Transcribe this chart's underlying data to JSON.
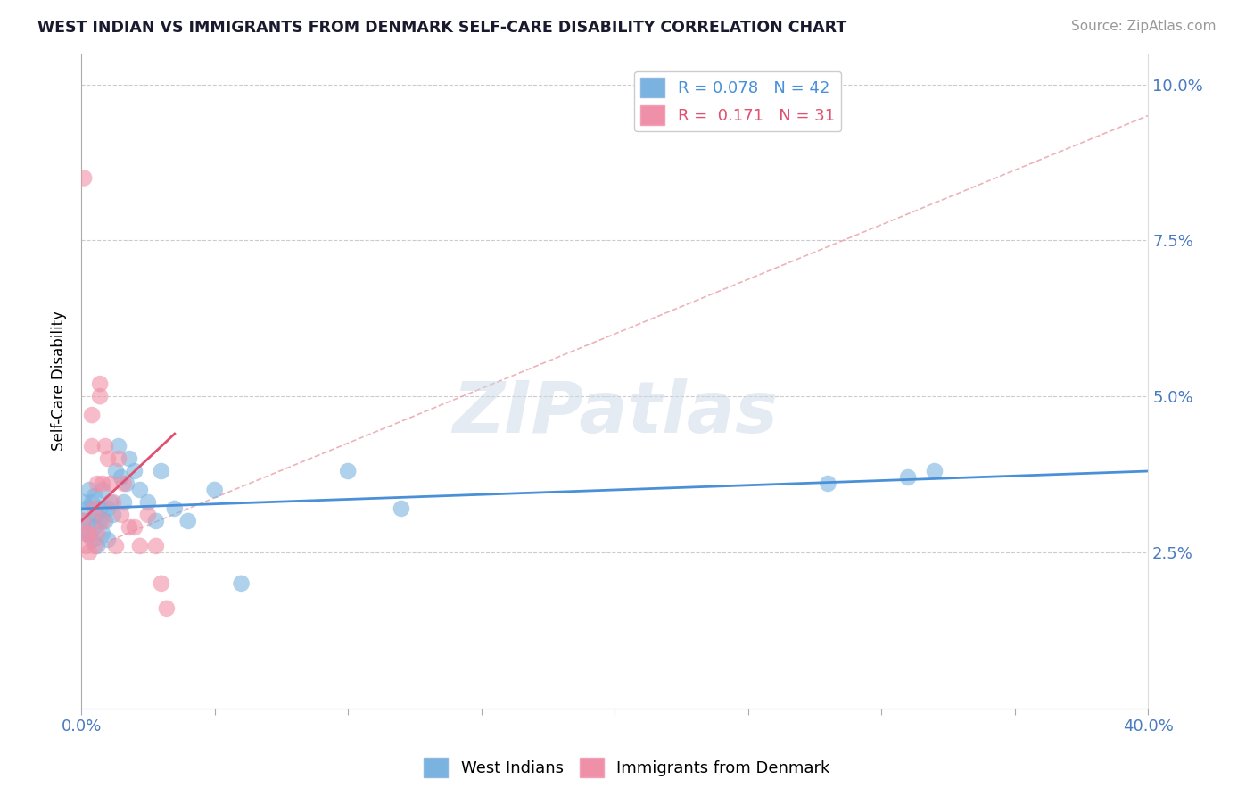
{
  "title": "WEST INDIAN VS IMMIGRANTS FROM DENMARK SELF-CARE DISABILITY CORRELATION CHART",
  "source": "Source: ZipAtlas.com",
  "xmin": 0.0,
  "xmax": 0.4,
  "ymin": 0.0,
  "ymax": 0.105,
  "ylabel": "Self-Care Disability",
  "ytick_vals": [
    0.025,
    0.05,
    0.075,
    0.1
  ],
  "ytick_labels": [
    "2.5%",
    "5.0%",
    "7.5%",
    "10.0%"
  ],
  "west_indians_x": [
    0.001,
    0.001,
    0.002,
    0.002,
    0.003,
    0.003,
    0.003,
    0.004,
    0.004,
    0.005,
    0.005,
    0.006,
    0.006,
    0.007,
    0.007,
    0.008,
    0.008,
    0.009,
    0.01,
    0.01,
    0.011,
    0.012,
    0.013,
    0.014,
    0.015,
    0.016,
    0.017,
    0.018,
    0.02,
    0.022,
    0.025,
    0.028,
    0.03,
    0.035,
    0.04,
    0.05,
    0.06,
    0.1,
    0.12,
    0.28,
    0.31,
    0.32
  ],
  "west_indians_y": [
    0.033,
    0.03,
    0.032,
    0.028,
    0.035,
    0.03,
    0.028,
    0.033,
    0.027,
    0.034,
    0.029,
    0.031,
    0.026,
    0.03,
    0.032,
    0.028,
    0.035,
    0.03,
    0.032,
    0.027,
    0.033,
    0.031,
    0.038,
    0.042,
    0.037,
    0.033,
    0.036,
    0.04,
    0.038,
    0.035,
    0.033,
    0.03,
    0.038,
    0.032,
    0.03,
    0.035,
    0.02,
    0.038,
    0.032,
    0.036,
    0.037,
    0.038
  ],
  "denmark_x": [
    0.001,
    0.001,
    0.002,
    0.002,
    0.003,
    0.003,
    0.004,
    0.004,
    0.005,
    0.005,
    0.006,
    0.006,
    0.007,
    0.007,
    0.008,
    0.008,
    0.009,
    0.01,
    0.011,
    0.012,
    0.013,
    0.014,
    0.015,
    0.016,
    0.018,
    0.02,
    0.022,
    0.025,
    0.028,
    0.03,
    0.032
  ],
  "denmark_y": [
    0.085,
    0.03,
    0.028,
    0.026,
    0.028,
    0.025,
    0.047,
    0.042,
    0.032,
    0.026,
    0.028,
    0.036,
    0.052,
    0.05,
    0.036,
    0.03,
    0.042,
    0.04,
    0.036,
    0.033,
    0.026,
    0.04,
    0.031,
    0.036,
    0.029,
    0.029,
    0.026,
    0.031,
    0.026,
    0.02,
    0.016
  ],
  "west_indian_color": "#7ab3e0",
  "denmark_color": "#f090a8",
  "west_indian_line_color": "#4a90d9",
  "denmark_line_color": "#e05070",
  "dashed_line_color": "#e8a0a8",
  "grid_color": "#cccccc",
  "watermark_text": "ZIPatlas",
  "wi_R": "0.078",
  "wi_N": "42",
  "dk_R": "0.171",
  "dk_N": "31"
}
